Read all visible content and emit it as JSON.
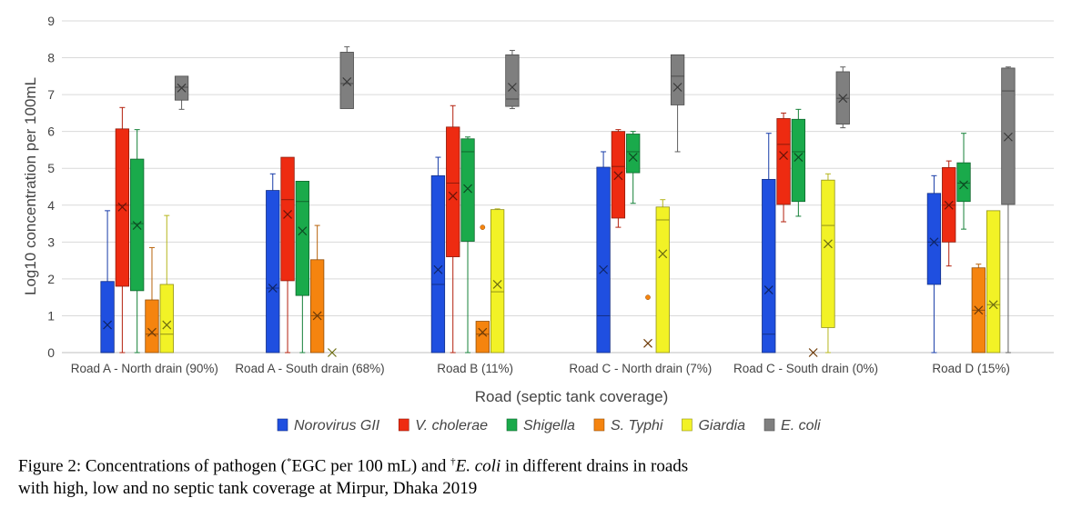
{
  "chart_data": {
    "type": "box",
    "xlabel": "Road (septic tank coverage)",
    "ylabel": "Log10 concentration per 100mL",
    "ylim": [
      0,
      9
    ],
    "yticks": [
      0,
      1,
      2,
      3,
      4,
      5,
      6,
      7,
      8,
      9
    ],
    "grid": true,
    "legend_position": "bottom",
    "categories": [
      "Road A - North drain (90%)",
      "Road A - South drain (68%)",
      "Road B (11%)",
      "Road C - North drain (7%)",
      "Road C - South drain (0%)",
      "Road D (15%)"
    ],
    "series": [
      {
        "name": "Norovirus GII",
        "color": "#1f4fe0",
        "boxes": [
          {
            "min": 0,
            "q1": 0,
            "median": 0,
            "q3": 1.93,
            "max": 3.85,
            "mean": 0.75
          },
          {
            "min": 0,
            "q1": 0,
            "median": 1.75,
            "q3": 4.4,
            "max": 4.85,
            "mean": 1.75
          },
          {
            "min": 0,
            "q1": 0,
            "median": 1.85,
            "q3": 4.8,
            "max": 5.3,
            "mean": 2.25
          },
          {
            "min": 0,
            "q1": 0,
            "median": 1.0,
            "q3": 5.03,
            "max": 5.45,
            "mean": 2.25
          },
          {
            "min": 0,
            "q1": 0,
            "median": 0.5,
            "q3": 4.7,
            "max": 5.95,
            "mean": 1.7
          },
          {
            "min": 0,
            "q1": 1.85,
            "median": 3.0,
            "q3": 4.32,
            "max": 4.8,
            "mean": 3.0
          }
        ]
      },
      {
        "name": "V. cholerae",
        "color": "#ee2b11",
        "boxes": [
          {
            "min": 0,
            "q1": 1.8,
            "median": 4.0,
            "q3": 6.07,
            "max": 6.65,
            "mean": 3.95
          },
          {
            "min": 0,
            "q1": 1.95,
            "median": 4.15,
            "q3": 5.3,
            "max": 5.3,
            "mean": 3.75
          },
          {
            "min": 0,
            "q1": 2.6,
            "median": 4.6,
            "q3": 6.12,
            "max": 6.7,
            "mean": 4.25
          },
          {
            "min": 3.4,
            "q1": 3.65,
            "median": 5.05,
            "q3": 6.0,
            "max": 6.05,
            "mean": 4.8
          },
          {
            "min": 3.55,
            "q1": 4.02,
            "median": 5.65,
            "q3": 6.35,
            "max": 6.5,
            "mean": 5.35
          },
          {
            "min": 2.35,
            "q1": 3.0,
            "median": 4.0,
            "q3": 5.02,
            "max": 5.2,
            "mean": 4.0
          }
        ]
      },
      {
        "name": "Shigella",
        "color": "#1aaa4b",
        "boxes": [
          {
            "min": 0,
            "q1": 1.68,
            "median": 3.5,
            "q3": 5.25,
            "max": 6.05,
            "mean": 3.45
          },
          {
            "min": 0,
            "q1": 1.55,
            "median": 4.1,
            "q3": 4.65,
            "max": 4.65,
            "mean": 3.3
          },
          {
            "min": 0,
            "q1": 3.02,
            "median": 5.45,
            "q3": 5.8,
            "max": 5.85,
            "mean": 4.45
          },
          {
            "min": 4.05,
            "q1": 4.88,
            "median": 5.45,
            "q3": 5.93,
            "max": 6.0,
            "mean": 5.3
          },
          {
            "min": 3.7,
            "q1": 4.1,
            "median": 5.45,
            "q3": 6.33,
            "max": 6.6,
            "mean": 5.3
          },
          {
            "min": 3.35,
            "q1": 4.1,
            "median": 4.6,
            "q3": 5.15,
            "max": 5.95,
            "mean": 4.55
          }
        ]
      },
      {
        "name": "S. Typhi",
        "color": "#f5840f",
        "boxes": [
          {
            "min": 0,
            "q1": 0,
            "median": 0.5,
            "q3": 1.43,
            "max": 2.85,
            "mean": 0.55
          },
          {
            "min": 0,
            "q1": 0,
            "median": 1.0,
            "q3": 2.52,
            "max": 3.45,
            "mean": 1.0
          },
          {
            "min": 0,
            "q1": 0,
            "median": 0.5,
            "q3": 0.85,
            "max": 0.85,
            "mean": 0.55,
            "outliers": [
              3.4
            ]
          },
          {
            "min": 0,
            "q1": 0,
            "median": 0,
            "q3": 0,
            "max": 0,
            "mean": 0.25,
            "outliers": [
              1.5
            ]
          },
          {
            "min": 0,
            "q1": 0,
            "median": 0,
            "q3": 0,
            "max": 0,
            "mean": 0.0
          },
          {
            "min": 0,
            "q1": 0,
            "median": 1.15,
            "q3": 2.3,
            "max": 2.4,
            "mean": 1.15
          }
        ]
      },
      {
        "name": "Giardia",
        "color": "#f2f226",
        "boxes": [
          {
            "min": 0,
            "q1": 0,
            "median": 0.5,
            "q3": 1.85,
            "max": 3.72,
            "mean": 0.75
          },
          {
            "min": 0,
            "q1": 0,
            "median": 0,
            "q3": 0,
            "max": 0,
            "mean": 0.0
          },
          {
            "min": 0,
            "q1": 0,
            "median": 1.65,
            "q3": 3.88,
            "max": 3.9,
            "mean": 1.85
          },
          {
            "min": 0,
            "q1": 0,
            "median": 3.6,
            "q3": 3.95,
            "max": 4.15,
            "mean": 2.68
          },
          {
            "min": 0,
            "q1": 0.68,
            "median": 3.45,
            "q3": 4.68,
            "max": 4.85,
            "mean": 2.95
          },
          {
            "min": 0,
            "q1": 0,
            "median": 1.3,
            "q3": 3.85,
            "max": 3.85,
            "mean": 1.3
          }
        ]
      },
      {
        "name": "E. coli",
        "color": "#7f7f7f",
        "boxes": [
          {
            "min": 6.6,
            "q1": 6.85,
            "median": 7.2,
            "q3": 7.5,
            "max": 7.5,
            "mean": 7.18
          },
          {
            "min": 6.62,
            "q1": 6.62,
            "median": 7.3,
            "q3": 8.15,
            "max": 8.3,
            "mean": 7.35
          },
          {
            "min": 6.62,
            "q1": 6.68,
            "median": 6.88,
            "q3": 8.08,
            "max": 8.2,
            "mean": 7.2
          },
          {
            "min": 5.45,
            "q1": 6.72,
            "median": 7.5,
            "q3": 8.08,
            "max": 8.08,
            "mean": 7.2
          },
          {
            "min": 6.1,
            "q1": 6.2,
            "median": 6.9,
            "q3": 7.62,
            "max": 7.75,
            "mean": 6.9
          },
          {
            "min": 0,
            "q1": 4.02,
            "median": 7.1,
            "q3": 7.72,
            "max": 7.75,
            "mean": 5.85
          }
        ]
      }
    ]
  },
  "caption": {
    "line1_a": "Figure 2: Concentrations of pathogen (",
    "mark1": "*",
    "line1_b": "EGC per 100 mL) and ",
    "mark2": "†",
    "line1_c": "E. coli",
    "line1_d": " in different drains in roads",
    "line2": "with high, low and no septic tank coverage at Mirpur, Dhaka 2019"
  }
}
